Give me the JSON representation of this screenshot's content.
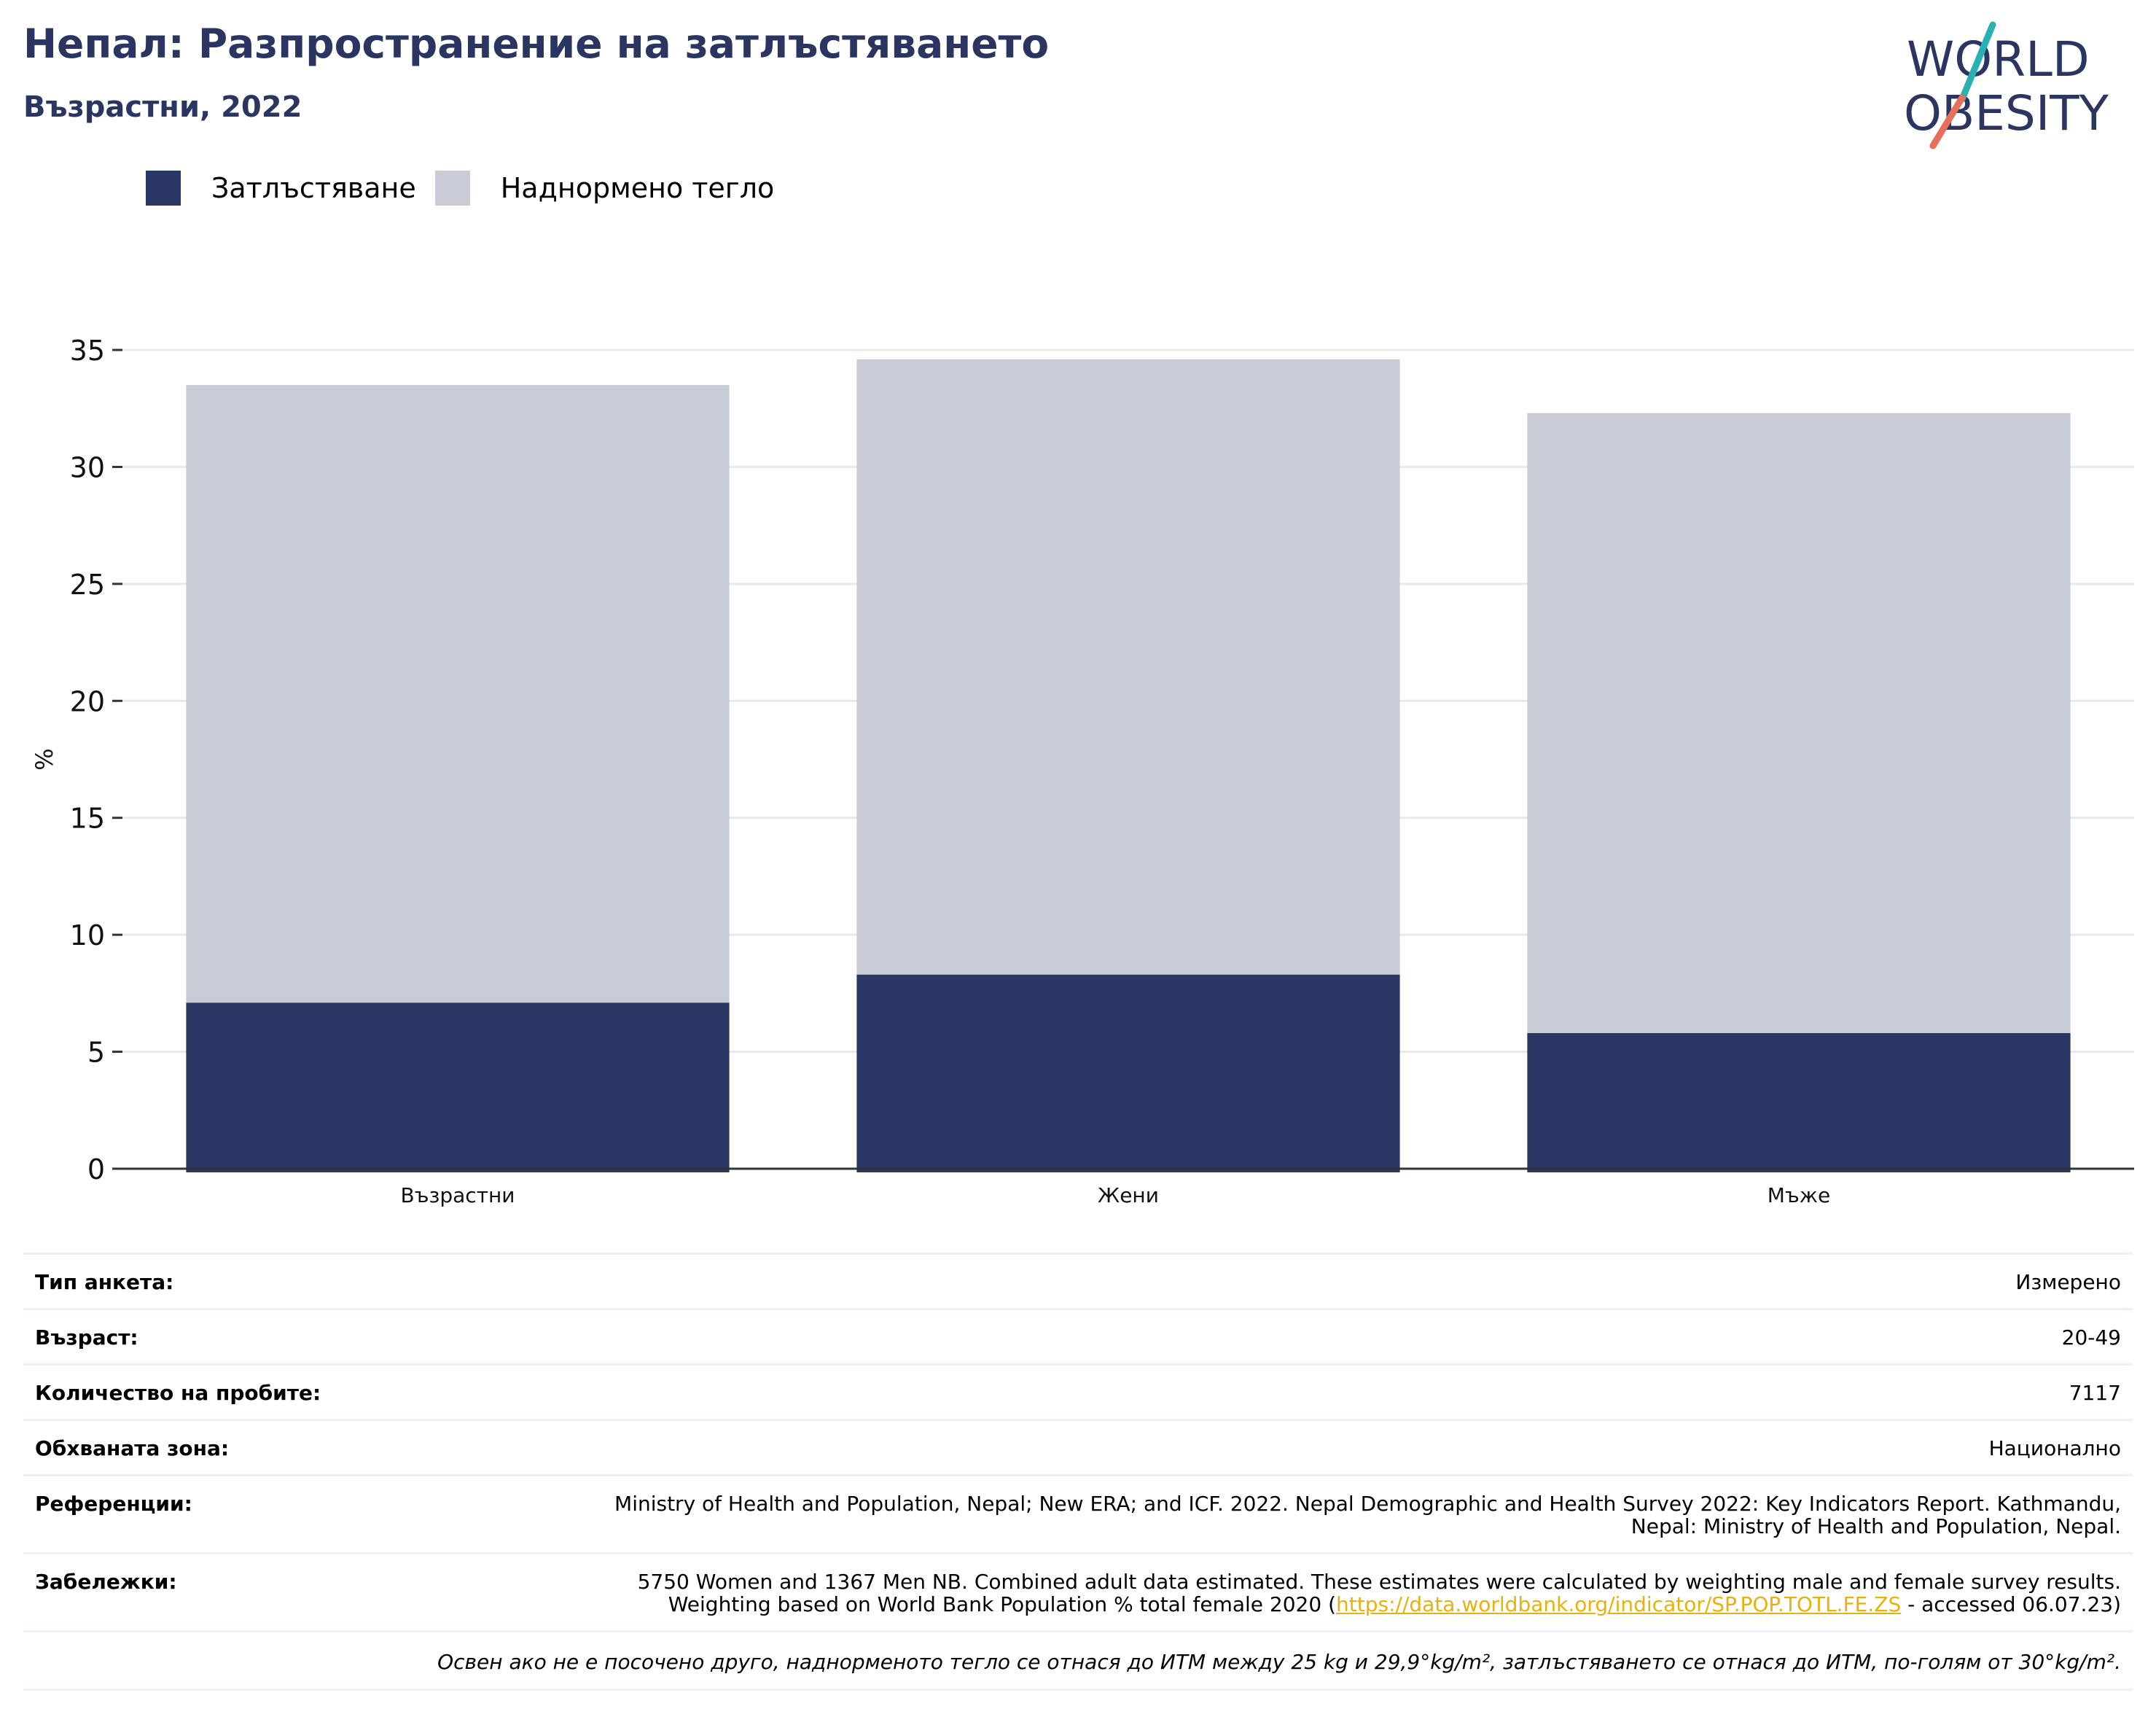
{
  "title": "Непал: Разпространение на затлъстяването",
  "subtitle": "Възрастни, 2022",
  "logo": {
    "line1": "WORLD",
    "line2": "OBESITY",
    "colors": {
      "text": "#2a3561",
      "slash_top": "#2ab0b3",
      "slash_bottom": "#e8705a"
    }
  },
  "legend": [
    {
      "label": "Затлъстяване",
      "color": "#2a3663"
    },
    {
      "label": "Наднормено тегло",
      "color": "#c9cbd7"
    }
  ],
  "chart_data": {
    "type": "bar",
    "stacked": true,
    "categories": [
      "Възрастни",
      "Жени",
      "Мъже"
    ],
    "series": [
      {
        "name": "Затлъстяване",
        "values": [
          7.1,
          8.3,
          5.8
        ],
        "color": "#2a3663"
      },
      {
        "name": "Наднормено тегло",
        "values": [
          26.4,
          26.3,
          26.5
        ],
        "color": "#c9cbd7"
      }
    ],
    "ylabel": "%",
    "ylim": [
      0,
      35
    ],
    "yticks": [
      0,
      5,
      10,
      15,
      20,
      25,
      30,
      35
    ],
    "grid": true,
    "legend_position": "top-left"
  },
  "info": [
    {
      "key": "Тип анкета:",
      "value": "Измерено"
    },
    {
      "key": "Възраст:",
      "value": "20-49"
    },
    {
      "key": "Количество на пробите:",
      "value": "7117"
    },
    {
      "key": "Обхваната зона:",
      "value": "Национално"
    },
    {
      "key": "Референции:",
      "value": "Ministry of Health and Population, Nepal; New ERA; and ICF. 2022. Nepal Demographic and Health Survey 2022: Key Indicators Report. Kathmandu, Nepal: Ministry of Health and Population, Nepal."
    }
  ],
  "notes": {
    "key": "Забележки:",
    "text_before": "5750 Women and 1367 Men NB. Combined adult data estimated. These estimates were calculated by weighting male and female survey results. Weighting based on World Bank Population % total female 2020 (",
    "link": "https://data.worldbank.org/indicator/SP.POP.TOTL.FE.ZS",
    "text_after": " - accessed 06.07.23)"
  },
  "footnote": "Освен ако не е посочено друго, наднорменото тегло се отнася до ИТМ между 25 kg и 29,9°kg/m², затлъстяването се отнася до ИТМ, по-голям от 30°kg/m²."
}
